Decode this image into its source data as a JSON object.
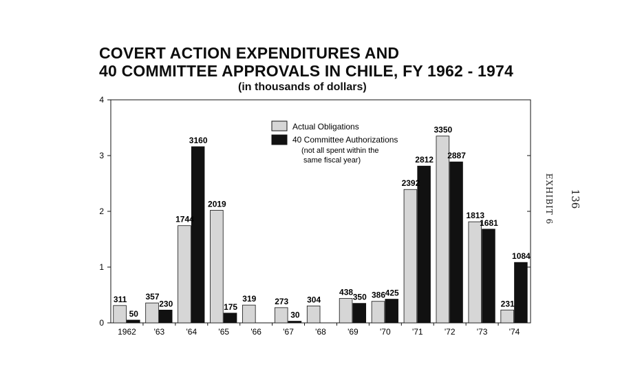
{
  "chart_data": {
    "type": "bar",
    "title_line1": "COVERT ACTION EXPENDITURES AND",
    "title_line2": "40 COMMITTEE APPROVALS IN CHILE, FY 1962 - 1974",
    "subtitle": "(in thousands of dollars)",
    "xlabel": "",
    "ylabel": "",
    "categories": [
      "1962",
      "'63",
      "'64",
      "'65",
      "'66",
      "'67",
      "'68",
      "'69",
      "'70",
      "'71",
      "'72",
      "'73",
      "'74"
    ],
    "yticks": [
      "0",
      "1",
      "2",
      "3",
      "4"
    ],
    "ylim": [
      0,
      4000
    ],
    "grid": false,
    "legend_position": "top-center",
    "legend_note": [
      "(not all spent within the",
      "same fiscal year)"
    ],
    "series": [
      {
        "name": "Actual Obligations",
        "color": "#d6d6d6",
        "values": [
          311,
          357,
          1744,
          2019,
          319,
          273,
          304,
          438,
          386,
          2392,
          3350,
          1813,
          231
        ],
        "labels": [
          "311",
          "357",
          "1744",
          "2019",
          "319",
          "273",
          "304",
          "438",
          "386",
          "2392",
          "3350",
          "1813",
          "231"
        ]
      },
      {
        "name": "40 Committee Authorizations",
        "color": "#111111",
        "values": [
          50,
          230,
          3160,
          175,
          null,
          30,
          null,
          350,
          425,
          2812,
          2887,
          1681,
          1084
        ],
        "labels": [
          "50",
          "230",
          "3160",
          "175",
          "",
          "30",
          "",
          "350",
          "425",
          "2812",
          "2887",
          "1681",
          "1084"
        ]
      }
    ]
  },
  "side_label": "EXHIBIT 6",
  "page_number": "136"
}
